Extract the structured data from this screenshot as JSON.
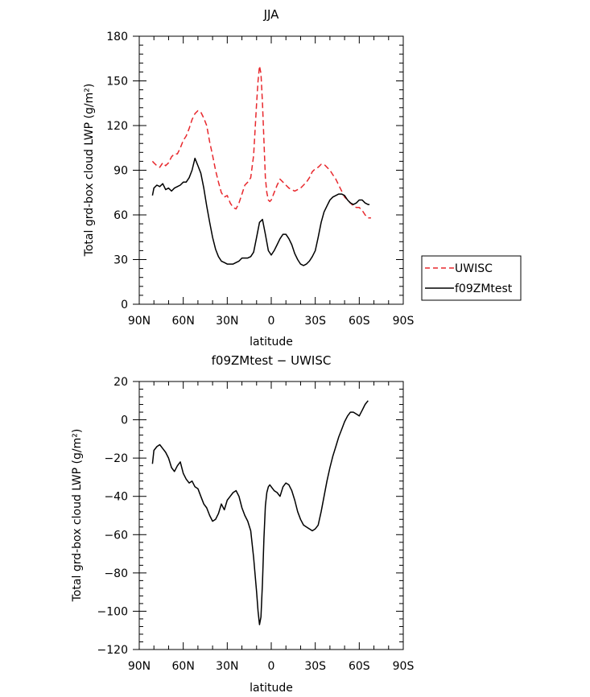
{
  "chart_data": [
    {
      "type": "line",
      "title": "JJA",
      "xlabel": "latitude",
      "ylabel": "Total grd-box cloud LWP (g/m²)",
      "xlim": [
        -90,
        90
      ],
      "ylim": [
        0,
        180
      ],
      "x_ticks": [
        -90,
        -60,
        -30,
        0,
        30,
        60,
        90
      ],
      "x_tick_labels": [
        "90N",
        "60N",
        "30N",
        "0",
        "30S",
        "60S",
        "90S"
      ],
      "y_ticks": [
        0,
        30,
        60,
        90,
        120,
        150,
        180
      ],
      "y_tick_labels": [
        "0",
        "30",
        "60",
        "90",
        "120",
        "150",
        "180"
      ],
      "legend": {
        "placement": "right",
        "entries": [
          "UWISC",
          "f09ZMtest"
        ]
      },
      "series": [
        {
          "name": "UWISC",
          "color": "#e8282d",
          "style": "dashed",
          "x": [
            -81,
            -80,
            -78,
            -76,
            -74,
            -72,
            -70,
            -68,
            -66,
            -64,
            -62,
            -60,
            -58,
            -56,
            -54,
            -52,
            -50,
            -48,
            -46,
            -44,
            -42,
            -40,
            -38,
            -36,
            -34,
            -32,
            -30,
            -28,
            -26,
            -24,
            -22,
            -20,
            -18,
            -16,
            -14,
            -12,
            -10,
            -9,
            -8,
            -7,
            -6,
            -5,
            -4,
            -3,
            -2,
            -1,
            0,
            2,
            4,
            6,
            8,
            10,
            12,
            14,
            16,
            18,
            20,
            22,
            24,
            26,
            28,
            30,
            32,
            34,
            36,
            38,
            40,
            42,
            44,
            46,
            48,
            50,
            52,
            54,
            56,
            58,
            60,
            62,
            64,
            66,
            68
          ],
          "y": [
            96,
            95,
            93,
            92,
            95,
            93,
            95,
            99,
            101,
            101,
            105,
            110,
            113,
            118,
            124,
            128,
            130,
            129,
            125,
            120,
            109,
            100,
            90,
            82,
            75,
            72,
            73,
            68,
            65,
            64,
            68,
            74,
            80,
            82,
            85,
            100,
            135,
            150,
            160,
            155,
            135,
            110,
            85,
            75,
            70,
            69,
            70,
            75,
            80,
            84,
            82,
            80,
            78,
            77,
            76,
            77,
            78,
            80,
            82,
            85,
            89,
            91,
            92,
            94,
            94,
            92,
            90,
            87,
            84,
            80,
            76,
            72,
            70,
            68,
            66,
            65,
            65,
            63,
            60,
            58,
            58
          ]
        },
        {
          "name": "f09ZMtest",
          "color": "#000000",
          "style": "solid",
          "x": [
            -81,
            -80,
            -78,
            -76,
            -74,
            -72,
            -70,
            -68,
            -66,
            -64,
            -62,
            -60,
            -58,
            -56,
            -54,
            -52,
            -50,
            -48,
            -46,
            -44,
            -42,
            -40,
            -38,
            -36,
            -34,
            -32,
            -30,
            -28,
            -26,
            -24,
            -22,
            -20,
            -18,
            -16,
            -14,
            -12,
            -10,
            -8,
            -6,
            -4,
            -2,
            0,
            2,
            4,
            6,
            8,
            10,
            12,
            14,
            16,
            18,
            20,
            22,
            24,
            26,
            28,
            30,
            32,
            34,
            36,
            38,
            40,
            42,
            44,
            46,
            48,
            50,
            52,
            54,
            56,
            58,
            60,
            62,
            64,
            66,
            67
          ],
          "y": [
            73,
            78,
            80,
            79,
            81,
            77,
            78,
            76,
            78,
            79,
            80,
            82,
            82,
            85,
            90,
            98,
            93,
            88,
            78,
            66,
            55,
            45,
            37,
            32,
            29,
            28,
            27,
            27,
            27,
            28,
            29,
            31,
            31,
            31,
            32,
            35,
            45,
            55,
            57,
            47,
            36,
            33,
            36,
            40,
            44,
            47,
            47,
            44,
            40,
            34,
            30,
            27,
            26,
            27,
            29,
            32,
            36,
            45,
            55,
            62,
            66,
            70,
            72,
            73,
            74,
            74,
            73,
            70,
            68,
            67,
            68,
            70,
            70,
            68,
            67,
            67
          ]
        }
      ]
    },
    {
      "type": "line",
      "title": "f09ZMtest  −  UWISC",
      "xlabel": "latitude",
      "ylabel": "Total grd-box cloud LWP (g/m²)",
      "xlim": [
        -90,
        90
      ],
      "ylim": [
        -120,
        20
      ],
      "x_ticks": [
        -90,
        -60,
        -30,
        0,
        30,
        60,
        90
      ],
      "x_tick_labels": [
        "90N",
        "60N",
        "30N",
        "0",
        "30S",
        "60S",
        "90S"
      ],
      "y_ticks": [
        -120,
        -100,
        -80,
        -60,
        -40,
        -20,
        0,
        20
      ],
      "y_tick_labels": [
        "−120",
        "−100",
        "−80",
        "−60",
        "−40",
        "−20",
        "0",
        "20"
      ],
      "series": [
        {
          "name": "f09ZMtest - UWISC",
          "color": "#000000",
          "style": "solid",
          "x": [
            -81,
            -80,
            -78,
            -76,
            -74,
            -72,
            -70,
            -68,
            -66,
            -64,
            -62,
            -60,
            -58,
            -56,
            -54,
            -52,
            -50,
            -48,
            -46,
            -44,
            -42,
            -40,
            -38,
            -36,
            -34,
            -32,
            -30,
            -28,
            -26,
            -24,
            -22,
            -20,
            -18,
            -16,
            -14,
            -12,
            -10,
            -9,
            -8,
            -7,
            -6,
            -5,
            -4,
            -3,
            -2,
            -1,
            0,
            2,
            4,
            6,
            8,
            10,
            12,
            14,
            16,
            18,
            20,
            22,
            24,
            26,
            28,
            30,
            32,
            34,
            36,
            38,
            40,
            42,
            44,
            46,
            48,
            50,
            52,
            54,
            56,
            58,
            60,
            62,
            64,
            66
          ],
          "y": [
            -23,
            -16,
            -14,
            -13,
            -15,
            -17,
            -20,
            -25,
            -27,
            -24,
            -22,
            -28,
            -31,
            -33,
            -32,
            -35,
            -36,
            -40,
            -44,
            -46,
            -50,
            -53,
            -52,
            -49,
            -44,
            -47,
            -42,
            -40,
            -38,
            -37,
            -40,
            -46,
            -50,
            -53,
            -58,
            -72,
            -90,
            -100,
            -107,
            -103,
            -85,
            -62,
            -45,
            -38,
            -35,
            -34,
            -35,
            -37,
            -38,
            -40,
            -35,
            -33,
            -34,
            -37,
            -42,
            -48,
            -52,
            -55,
            -56,
            -57,
            -58,
            -57,
            -55,
            -48,
            -40,
            -32,
            -25,
            -19,
            -14,
            -9,
            -5,
            -1,
            2,
            4,
            4,
            3,
            2,
            5,
            8,
            10
          ]
        }
      ]
    }
  ]
}
